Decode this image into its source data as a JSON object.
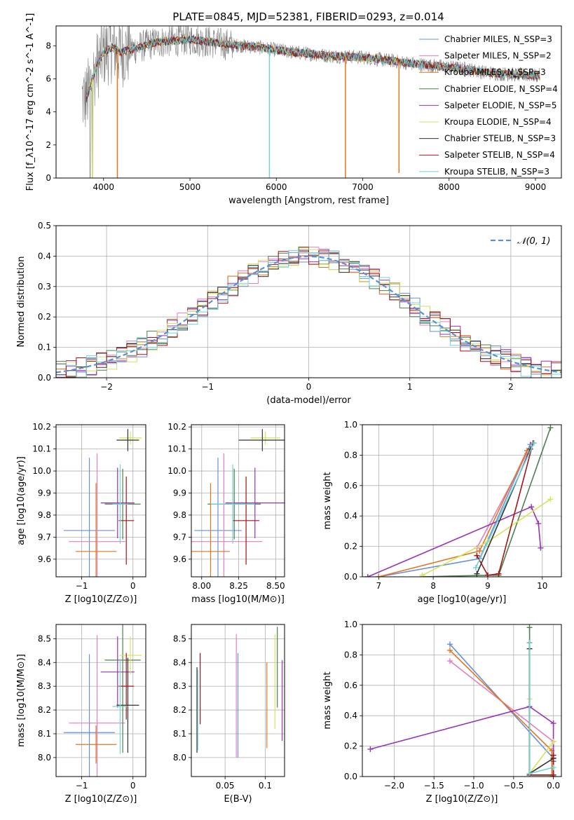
{
  "figure": {
    "title": "PLATE=0845, MJD=52381, FIBERID=0293, z=0.014",
    "series_colors": [
      "#6a8fdb",
      "#e27fbf",
      "#e0771f",
      "#4f7f4f",
      "#9932b5",
      "#d4e35a",
      "#333333",
      "#a31515",
      "#6fd3d8"
    ]
  },
  "chart_data": [
    {
      "id": "spectrum",
      "type": "line",
      "title": "PLATE=0845, MJD=52381, FIBERID=0293, z=0.014",
      "xlabel": "wavelength [Angstrom, rest frame]",
      "ylabel": "Flux [f_λ10^-17 erg cm^-2 s^-1 A^-1]",
      "xlim": [
        3450,
        9300
      ],
      "ylim": [
        0,
        9.2
      ],
      "xticks": [
        4000,
        5000,
        6000,
        7000,
        8000,
        9000
      ],
      "yticks": [
        0,
        2,
        4,
        6,
        8
      ],
      "grid": false,
      "legend_position": "top-right",
      "data_color": "#808080",
      "data_x_range": [
        3750,
        9050
      ],
      "legend": [
        {
          "label": "Chabrier MILES, N_SSP=3",
          "color": "#6a8fdb"
        },
        {
          "label": "Salpeter MILES, N_SSP=2",
          "color": "#e27fbf"
        },
        {
          "label": "Kroupa MILES, N_SSP=3",
          "color": "#e0771f"
        },
        {
          "label": "Chabrier ELODIE, N_SSP=4",
          "color": "#4f7f4f"
        },
        {
          "label": "Salpeter ELODIE, N_SSP=5",
          "color": "#9932b5"
        },
        {
          "label": "Kroupa ELODIE, N_SSP=4",
          "color": "#d4e35a"
        },
        {
          "label": "Chabrier STELIB, N_SSP=3",
          "color": "#333333"
        },
        {
          "label": "Salpeter STELIB, N_SSP=4",
          "color": "#a31515"
        },
        {
          "label": "Kroupa STELIB, N_SSP=3",
          "color": "#6fd3d8"
        }
      ],
      "model_envelope": {
        "x": [
          3800,
          3900,
          4000,
          4100,
          4200,
          4400,
          4600,
          4800,
          5000,
          5400,
          5800,
          6200,
          6600,
          7000,
          7400,
          7600,
          7800,
          8000,
          8200,
          8400,
          8600,
          8800,
          9050
        ],
        "y": [
          4.8,
          6.5,
          7.6,
          7.9,
          7.6,
          7.9,
          8.2,
          8.3,
          8.4,
          8.1,
          7.9,
          7.6,
          7.4,
          7.3,
          7.05,
          6.9,
          6.8,
          6.7,
          6.6,
          6.4,
          6.3,
          6.25,
          6.2
        ]
      },
      "model_dips": [
        {
          "x": 4160,
          "y": 0.0,
          "color": "#e0771f"
        },
        {
          "x": 3870,
          "y": 0.0,
          "color": "#d4e35a"
        },
        {
          "x": 5920,
          "y": 0.0,
          "color": "#6fd3d8"
        },
        {
          "x": 6800,
          "y": 0.0,
          "color": "#e0771f"
        },
        {
          "x": 7420,
          "y": 0.3,
          "color": "#e0771f"
        }
      ]
    },
    {
      "id": "residuals",
      "type": "histogram",
      "xlabel": "(data-model)/error",
      "ylabel": "Normed distribution",
      "xlim": [
        -2.5,
        2.5
      ],
      "ylim": [
        0,
        0.5
      ],
      "xticks": [
        -2,
        -1,
        0,
        1,
        2
      ],
      "yticks": [
        0.0,
        0.1,
        0.2,
        0.3,
        0.4,
        0.5
      ],
      "grid": true,
      "legend_position": "top-right",
      "legend": [
        {
          "label": "𝒩(0, 1)",
          "color": "#5b8fd6",
          "style": "dashed"
        }
      ],
      "bin_edges_range": [
        -2.5,
        2.5
      ],
      "bin_width": 0.1,
      "reference_curve": "normal(0,1)"
    },
    {
      "id": "age_vs_Z",
      "type": "errorbar",
      "xlabel": "Z [log10(Z/Z⊙)]",
      "ylabel": "age  [log10(age/yr)]",
      "xlim": [
        -1.5,
        0.25
      ],
      "ylim": [
        9.52,
        10.21
      ],
      "xticks": [
        -1,
        0
      ],
      "yticks": [
        9.6,
        9.7,
        9.8,
        9.9,
        10.0,
        10.1,
        10.2
      ],
      "grid": true,
      "points": [
        {
          "x": -0.85,
          "xerr": 0.5,
          "y": 9.73,
          "yerr": 0.33,
          "color": "#6a8fdb"
        },
        {
          "x": -0.7,
          "xerr": 0.55,
          "y": 9.68,
          "yerr": 0.4,
          "color": "#e27fbf"
        },
        {
          "x": -0.72,
          "xerr": 0.4,
          "y": 9.635,
          "yerr": 0.31,
          "color": "#e0771f"
        },
        {
          "x": -0.2,
          "xerr": 0.35,
          "y": 9.85,
          "yerr": 0.16,
          "color": "#4f7f4f"
        },
        {
          "x": -0.3,
          "xerr": 0.33,
          "y": 9.855,
          "yerr": 0.16,
          "color": "#9932b5"
        },
        {
          "x": -0.05,
          "xerr": 0.22,
          "y": 10.15,
          "yerr": 0.03,
          "color": "#d4e35a"
        },
        {
          "x": -0.1,
          "xerr": 0.22,
          "y": 10.14,
          "yerr": 0.05,
          "color": "#333333"
        },
        {
          "x": -0.13,
          "xerr": 0.15,
          "y": 9.775,
          "yerr": 0.2,
          "color": "#a31515"
        },
        {
          "x": -0.25,
          "xerr": 0.15,
          "y": 9.85,
          "yerr": 0.18,
          "color": "#6fd3d8"
        }
      ]
    },
    {
      "id": "age_vs_mass",
      "type": "errorbar",
      "xlabel": "mass [log10(M/M⊙)]",
      "ylabel": "",
      "xlim": [
        7.93,
        8.56
      ],
      "ylim": [
        9.52,
        10.21
      ],
      "xticks": [
        8.0,
        8.25,
        8.5
      ],
      "yticks": [
        9.6,
        9.7,
        9.8,
        9.9,
        10.0,
        10.1,
        10.2
      ],
      "grid": true,
      "points": [
        {
          "x": 8.11,
          "xerr": 0.16,
          "y": 9.73,
          "yerr": 0.33,
          "color": "#6a8fdb"
        },
        {
          "x": 8.15,
          "xerr": 0.26,
          "y": 9.68,
          "yerr": 0.4,
          "color": "#e27fbf"
        },
        {
          "x": 8.06,
          "xerr": 0.13,
          "y": 9.635,
          "yerr": 0.31,
          "color": "#e0771f"
        },
        {
          "x": 8.22,
          "xerr": 0.18,
          "y": 9.85,
          "yerr": 0.16,
          "color": "#4f7f4f"
        },
        {
          "x": 8.36,
          "xerr": 0.2,
          "y": 9.855,
          "yerr": 0.16,
          "color": "#9932b5"
        },
        {
          "x": 8.43,
          "xerr": 0.1,
          "y": 10.15,
          "yerr": 0.03,
          "color": "#d4e35a"
        },
        {
          "x": 8.41,
          "xerr": 0.16,
          "y": 10.14,
          "yerr": 0.05,
          "color": "#333333"
        },
        {
          "x": 8.3,
          "xerr": 0.09,
          "y": 9.775,
          "yerr": 0.2,
          "color": "#a31515"
        },
        {
          "x": 8.21,
          "xerr": 0.15,
          "y": 9.85,
          "yerr": 0.18,
          "color": "#6fd3d8"
        }
      ]
    },
    {
      "id": "mass_weight_vs_age",
      "type": "line",
      "xlabel": "age  [log10(age/yr)]",
      "ylabel": "mass weight",
      "xlim": [
        6.7,
        10.35
      ],
      "ylim": [
        0,
        1
      ],
      "xticks": [
        7,
        8,
        9,
        10
      ],
      "yticks": [
        0.0,
        0.2,
        0.4,
        0.6,
        0.8,
        1.0
      ],
      "grid": true,
      "series": [
        {
          "name": "",
          "color": "#6a8fdb",
          "x": [
            7.0,
            8.85,
            9.78
          ],
          "y": [
            0.0,
            0.12,
            0.87
          ]
        },
        {
          "name": "",
          "color": "#e27fbf",
          "x": [
            8.8,
            9.72
          ],
          "y": [
            0.19,
            0.81
          ]
        },
        {
          "name": "",
          "color": "#e0771f",
          "x": [
            7.0,
            8.85,
            9.72
          ],
          "y": [
            0.0,
            0.17,
            0.83
          ]
        },
        {
          "name": "",
          "color": "#4f7f4f",
          "x": [
            7.8,
            9.0,
            9.2,
            10.15
          ],
          "y": [
            0.0,
            0.01,
            0.01,
            0.98
          ]
        },
        {
          "name": "",
          "color": "#9932b5",
          "x": [
            6.8,
            9.8,
            9.93,
            9.97
          ],
          "y": [
            0.0,
            0.46,
            0.35,
            0.19
          ]
        },
        {
          "name": "",
          "color": "#d4e35a",
          "x": [
            7.8,
            9.0,
            10.15
          ],
          "y": [
            0.01,
            0.23,
            0.51
          ]
        },
        {
          "name": "",
          "color": "#333333",
          "x": [
            8.8,
            9.78
          ],
          "y": [
            0.02,
            0.84
          ]
        },
        {
          "name": "",
          "color": "#a31515",
          "x": [
            8.8,
            9.0,
            9.2,
            9.83
          ],
          "y": [
            0.14,
            0.01,
            0.02,
            0.88
          ]
        },
        {
          "name": "",
          "color": "#6fd3d8",
          "x": [
            8.78,
            9.85
          ],
          "y": [
            0.06,
            0.88
          ]
        }
      ]
    },
    {
      "id": "mass_vs_Z",
      "type": "errorbar",
      "xlabel": "Z [log10(Z/Z⊙)]",
      "ylabel": "mass [log10(M/M⊙)]",
      "xlim": [
        -1.5,
        0.25
      ],
      "ylim": [
        7.92,
        8.56
      ],
      "xticks": [
        -1,
        0
      ],
      "yticks": [
        8.0,
        8.1,
        8.2,
        8.3,
        8.4,
        8.5
      ],
      "grid": true,
      "points": [
        {
          "x": -0.85,
          "xerr": 0.5,
          "y": 8.105,
          "yerr": 0.33,
          "color": "#6a8fdb"
        },
        {
          "x": -0.7,
          "xerr": 0.55,
          "y": 8.145,
          "yerr": 0.37,
          "color": "#e27fbf"
        },
        {
          "x": -0.72,
          "xerr": 0.4,
          "y": 8.055,
          "yerr": 0.08,
          "color": "#e0771f"
        },
        {
          "x": -0.2,
          "xerr": 0.35,
          "y": 8.41,
          "yerr": 0.39,
          "color": "#4f7f4f"
        },
        {
          "x": -0.3,
          "xerr": 0.33,
          "y": 8.36,
          "yerr": 0.15,
          "color": "#9932b5"
        },
        {
          "x": -0.05,
          "xerr": 0.22,
          "y": 8.43,
          "yerr": 0.08,
          "color": "#d4e35a"
        },
        {
          "x": -0.1,
          "xerr": 0.22,
          "y": 8.22,
          "yerr": 0.2,
          "color": "#333333"
        },
        {
          "x": -0.13,
          "xerr": 0.15,
          "y": 8.3,
          "yerr": 0.14,
          "color": "#a31515"
        },
        {
          "x": -0.25,
          "xerr": 0.15,
          "y": 8.215,
          "yerr": 0.2,
          "color": "#6fd3d8"
        }
      ]
    },
    {
      "id": "mass_vs_EBV",
      "type": "errorbar",
      "xlabel": "E(B-V)",
      "ylabel": "",
      "xlim": [
        0.008,
        0.124
      ],
      "ylim": [
        7.92,
        8.56
      ],
      "xticks": [
        0.05,
        0.1
      ],
      "yticks": [
        8.0,
        8.1,
        8.2,
        8.3,
        8.4,
        8.5
      ],
      "grid": true,
      "points": [
        {
          "x": 0.066,
          "y": 8.22,
          "yerr": 0.22,
          "color": "#6a8fdb"
        },
        {
          "x": 0.064,
          "y": 8.26,
          "yerr": 0.26,
          "color": "#e27fbf"
        },
        {
          "x": 0.102,
          "y": 8.22,
          "yerr": 0.18,
          "color": "#e0771f"
        },
        {
          "x": 0.115,
          "y": 8.38,
          "yerr": 0.17,
          "color": "#4f7f4f"
        },
        {
          "x": 0.121,
          "y": 8.24,
          "yerr": 0.17,
          "color": "#9932b5"
        },
        {
          "x": 0.112,
          "y": 8.32,
          "yerr": 0.2,
          "color": "#d4e35a"
        },
        {
          "x": 0.015,
          "y": 8.2,
          "yerr": 0.18,
          "color": "#333333"
        },
        {
          "x": 0.019,
          "y": 8.29,
          "yerr": 0.15,
          "color": "#a31515"
        },
        {
          "x": 0.016,
          "y": 8.2,
          "yerr": 0.17,
          "color": "#6fd3d8"
        }
      ]
    },
    {
      "id": "mass_weight_vs_Z",
      "type": "line",
      "xlabel": "Z [log10(Z/Z⊙)]",
      "ylabel": "mass weight",
      "xlim": [
        -2.4,
        0.1
      ],
      "ylim": [
        0,
        1
      ],
      "xticks": [
        -2.0,
        -1.5,
        -1.0,
        -0.5,
        0.0
      ],
      "yticks": [
        0.0,
        0.2,
        0.4,
        0.6,
        0.8,
        1.0
      ],
      "grid": true,
      "series": [
        {
          "name": "",
          "color": "#6a8fdb",
          "x": [
            -1.3,
            0.0,
            0.0
          ],
          "y": [
            0.87,
            0.12,
            0.01
          ]
        },
        {
          "name": "",
          "color": "#e27fbf",
          "x": [
            -1.3,
            0.0,
            0.0
          ],
          "y": [
            0.76,
            0.23,
            0.01
          ]
        },
        {
          "name": "",
          "color": "#e0771f",
          "x": [
            -1.3,
            -0.02,
            -0.02
          ],
          "y": [
            0.83,
            0.17,
            0.0
          ]
        },
        {
          "name": "",
          "color": "#4f7f4f",
          "x": [
            -0.3,
            -0.3,
            0.0,
            0.0
          ],
          "y": [
            0.98,
            0.01,
            0.01,
            0.1
          ]
        },
        {
          "name": "",
          "color": "#9932b5",
          "x": [
            -2.3,
            -0.3,
            0.0,
            0.0,
            0.0
          ],
          "y": [
            0.18,
            0.46,
            0.35,
            0.12,
            0.0
          ]
        },
        {
          "name": "",
          "color": "#d4e35a",
          "x": [
            -0.3,
            -0.3,
            0.0
          ],
          "y": [
            0.51,
            0.02,
            0.23
          ]
        },
        {
          "name": "",
          "color": "#333333",
          "x": [
            -0.3,
            -0.3,
            0.0
          ],
          "y": [
            0.84,
            0.02,
            0.12
          ]
        },
        {
          "name": "",
          "color": "#a31515",
          "x": [
            -0.3,
            -0.3,
            0.0,
            0.0
          ],
          "y": [
            0.88,
            0.01,
            0.01,
            0.14
          ]
        },
        {
          "name": "",
          "color": "#6fd3d8",
          "x": [
            -0.3,
            -0.3,
            0.0
          ],
          "y": [
            0.88,
            0.02,
            0.06
          ]
        }
      ]
    }
  ]
}
